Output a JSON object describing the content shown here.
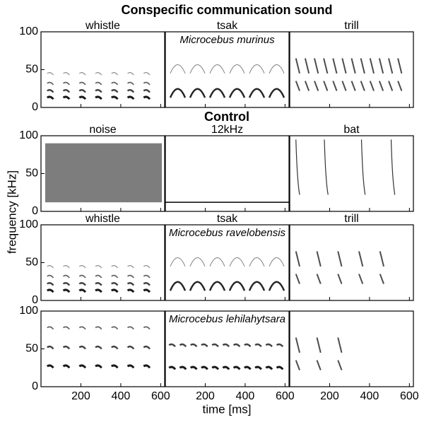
{
  "chart_data": {
    "type": "spectrogram",
    "title": "Conspecific communication sound",
    "section_title": "Control",
    "ylabel": "frequency [kHz]",
    "xlabel": "time [ms]",
    "ylim": [
      0,
      100
    ],
    "yticks": [
      0,
      50,
      100
    ],
    "xlim": [
      0,
      620
    ],
    "xticks": [
      200,
      400,
      600
    ],
    "panels": [
      [
        {
          "title": "whistle"
        },
        {
          "title": "tsak",
          "annotation": "Microcebus murinus"
        },
        {
          "title": "trill"
        }
      ],
      [
        {
          "title": "noise"
        },
        {
          "title": "12kHz"
        },
        {
          "title": "bat"
        }
      ],
      [
        {
          "title": "whistle"
        },
        {
          "title": "tsak",
          "annotation": "Microcebus ravelobensis"
        },
        {
          "title": "trill"
        }
      ],
      [
        {},
        {
          "annotation": "Microcebus lehilahytsara"
        },
        {}
      ]
    ]
  }
}
